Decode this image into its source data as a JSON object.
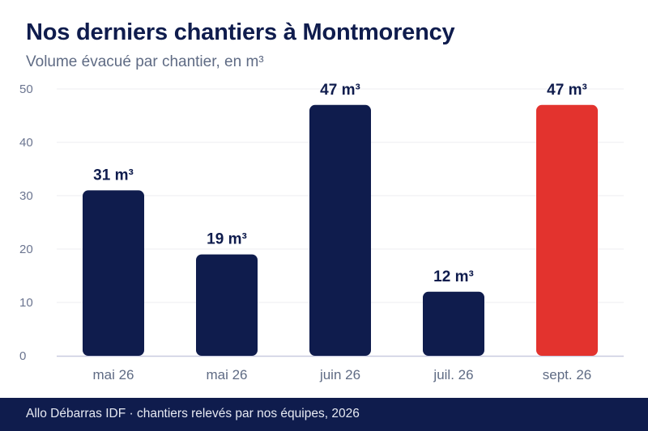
{
  "header": {
    "title": "Nos derniers chantiers à Montmorency",
    "subtitle": "Volume évacué par chantier, en m³"
  },
  "footer": {
    "text": "Allo Débarras IDF · chantiers relevés par nos équipes, 2026"
  },
  "chart_data": {
    "type": "bar",
    "title": "Nos derniers chantiers à Montmorency",
    "subtitle": "Volume évacué par chantier, en m³",
    "categories": [
      "mai 26",
      "mai 26",
      "juin 26",
      "juil. 26",
      "sept. 26"
    ],
    "values": [
      31,
      19,
      47,
      12,
      47
    ],
    "value_labels": [
      "31 m³",
      "19 m³",
      "47 m³",
      "12 m³",
      "47 m³"
    ],
    "ylim": [
      0,
      50
    ],
    "yticks": [
      0,
      10,
      20,
      30,
      40,
      50
    ],
    "grid": true,
    "colors": {
      "default": "#0f1c4d",
      "highlight": "#e3332e",
      "highlight_index": 4
    }
  }
}
